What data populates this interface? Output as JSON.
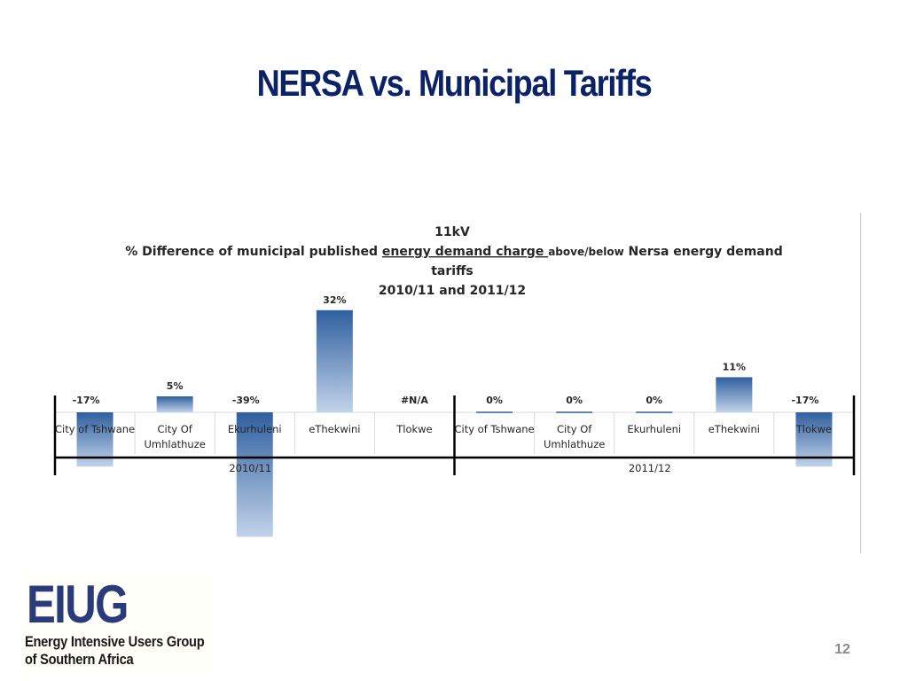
{
  "slide": {
    "title": "NERSA vs. Municipal Tariffs",
    "page_number": "12"
  },
  "logo": {
    "mark": "EIUG",
    "line1": "Energy Intensive Users Group",
    "line2": "of Southern Africa"
  },
  "chart_data": {
    "type": "bar",
    "title_lines": [
      "11kV",
      "% Difference of municipal published energy demand charge above/below Nersa energy demand",
      "tariffs",
      "2010/11 and 2011/12"
    ],
    "title_line2_parts": {
      "before": "% Difference of municipal published ",
      "underlined": "energy demand charge ",
      "small": "above/below",
      "after": " Nersa energy demand"
    },
    "groups": [
      {
        "label": "2010/11",
        "categories": [
          [
            "City of Tshwane"
          ],
          [
            "City Of",
            "Umhlathuze"
          ],
          [
            "Ekurhuleni"
          ],
          [
            "eThekwini"
          ],
          [
            "Tlokwe"
          ]
        ],
        "values": [
          -17,
          5,
          -39,
          32,
          null
        ],
        "data_labels": [
          "-17%",
          "5%",
          "-39%",
          "32%",
          "#N/A"
        ]
      },
      {
        "label": "2011/12",
        "categories": [
          [
            "City of Tshwane"
          ],
          [
            "City Of",
            "Umhlathuze"
          ],
          [
            "Ekurhuleni"
          ],
          [
            "eThekwini"
          ],
          [
            "Tlokwe"
          ]
        ],
        "values": [
          0,
          0,
          0,
          11,
          -17
        ],
        "data_labels": [
          "0%",
          "0%",
          "0%",
          "11%",
          "-17%"
        ]
      }
    ],
    "unit": "%",
    "colors": {
      "bar_dark": "#2f5f9f",
      "bar_light": "#c2d3ea",
      "axis": "#000000",
      "grid": "#d9d9d9"
    }
  }
}
